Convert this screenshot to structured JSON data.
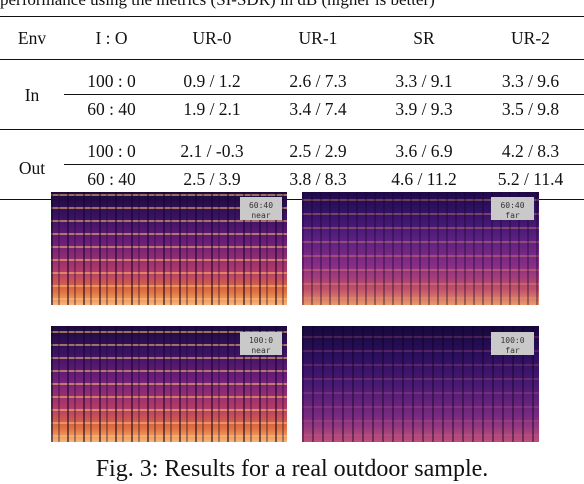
{
  "top_text": "performance using the metrics (SI-SDR) in dB (higher is better)",
  "table": {
    "headers": [
      "Env",
      "I : O",
      "UR-0",
      "UR-1",
      "SR",
      "UR-2"
    ],
    "groups": [
      {
        "env": "In",
        "rows": [
          {
            "ratio": "100 : 0",
            "bold": false,
            "values": [
              "0.9 / 1.2",
              "2.6 / 7.3",
              "3.3 / 9.1",
              "3.3 / 9.6"
            ]
          },
          {
            "ratio": "60 : 40",
            "bold": true,
            "values": [
              "1.9 / 2.1",
              "3.4 / 7.4",
              "3.9 / 9.3",
              "3.5 / 9.8"
            ]
          }
        ]
      },
      {
        "env": "Out",
        "rows": [
          {
            "ratio": "100 : 0",
            "bold": false,
            "values": [
              "2.1 / -0.3",
              "2.5 / 2.9",
              "3.6 / 6.9",
              "4.2 / 8.3"
            ]
          },
          {
            "ratio": "60 : 40",
            "bold": true,
            "values": [
              "2.5 / 3.9",
              "3.8 / 8.3",
              "4.6 / 11.2",
              "5.2 / 11.4"
            ]
          }
        ]
      }
    ]
  },
  "spectrograms": [
    {
      "tag_line1": "60:40",
      "tag_line2": "near"
    },
    {
      "tag_line1": "60:40",
      "tag_line2": "far"
    },
    {
      "tag_line1": "100:0",
      "tag_line2": "near"
    },
    {
      "tag_line1": "100:0",
      "tag_line2": "far"
    }
  ],
  "caption": "Fig. 3: Results for a real outdoor sample."
}
